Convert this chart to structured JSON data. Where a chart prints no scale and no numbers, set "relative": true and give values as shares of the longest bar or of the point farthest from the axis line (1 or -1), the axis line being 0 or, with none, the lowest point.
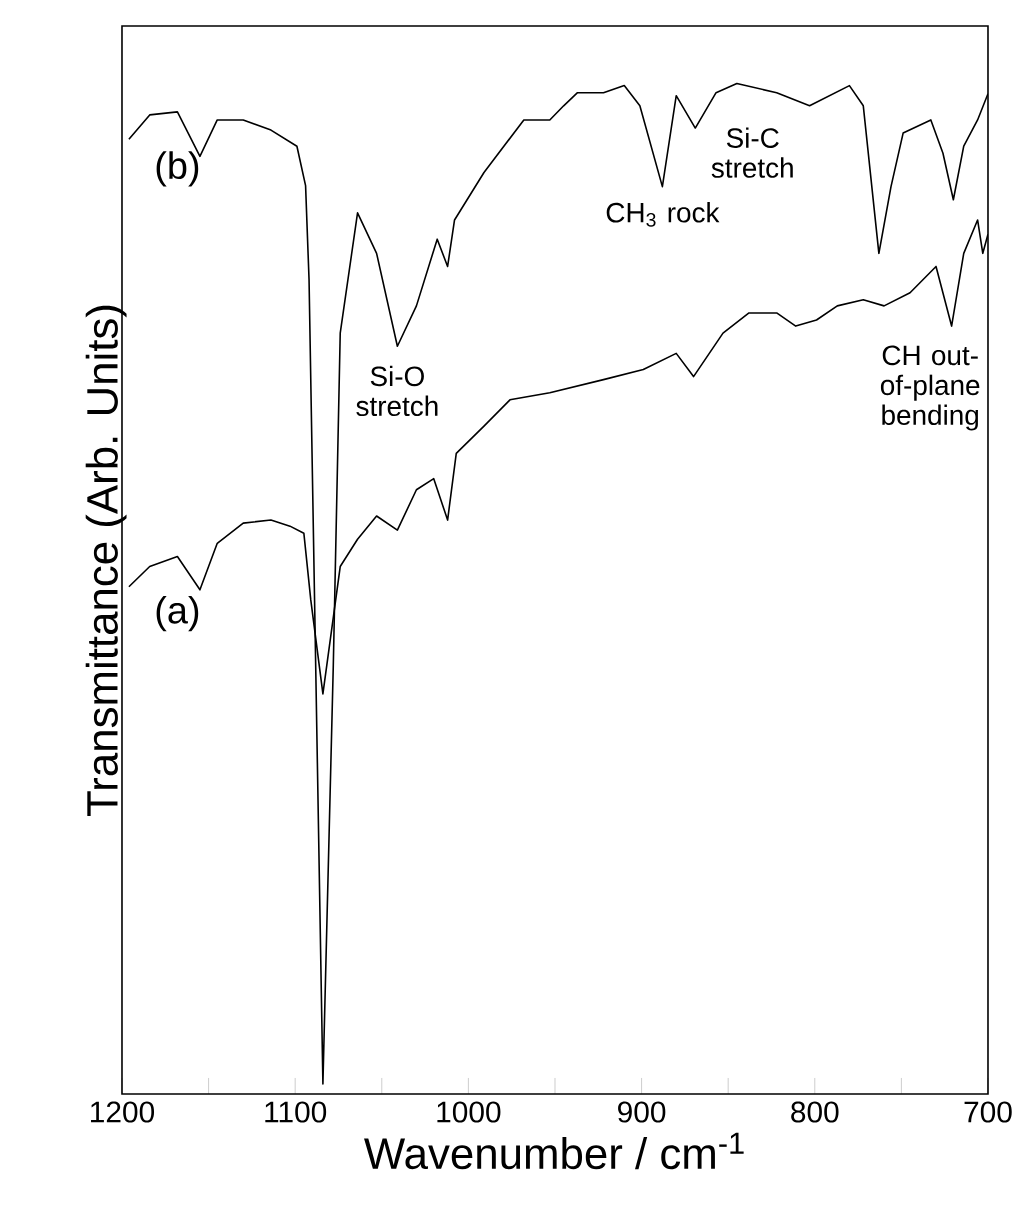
{
  "chart_data": {
    "type": "line",
    "relative": true,
    "xlabel": "Wavenumber / cm$^{-1}$",
    "ylabel": "Transmittance (Arb. Units)",
    "xlim": [
      1200,
      700
    ],
    "xticks": [
      1200,
      {
        "value": 1150,
        "label": null
      },
      1100,
      {
        "value": 1050,
        "label": null
      },
      1000,
      {
        "value": 950,
        "label": null
      },
      900,
      {
        "value": 850,
        "label": null
      },
      800,
      {
        "value": 750,
        "label": null
      },
      700
    ],
    "series": [
      {
        "name": "(b)",
        "color": "#000000",
        "x": [
          1196,
          1184,
          1168,
          1155,
          1145,
          1130,
          1114,
          1099,
          1094,
          1092,
          1084,
          1078,
          1074,
          1064,
          1053,
          1041,
          1030,
          1018,
          1012,
          1008,
          991,
          968,
          953,
          945,
          937,
          922,
          910,
          901,
          888,
          880,
          869,
          857,
          845,
          822,
          803,
          780,
          772,
          763,
          756,
          749,
          733,
          726,
          720,
          714,
          706,
          700
        ],
        "values": [
          0.945,
          0.969,
          0.972,
          0.928,
          0.964,
          0.964,
          0.954,
          0.938,
          0.899,
          0.806,
          0.01,
          0.424,
          0.753,
          0.872,
          0.832,
          0.74,
          0.78,
          0.846,
          0.819,
          0.865,
          0.912,
          0.964,
          0.964,
          0.978,
          0.991,
          0.991,
          0.998,
          0.978,
          0.898,
          0.988,
          0.956,
          0.991,
          1.0,
          0.991,
          0.978,
          0.998,
          0.978,
          0.832,
          0.898,
          0.951,
          0.964,
          0.931,
          0.885,
          0.938,
          0.964,
          0.99
        ]
      },
      {
        "name": "(a)",
        "color": "#000000",
        "x": [
          1196,
          1184,
          1168,
          1155,
          1145,
          1130,
          1114,
          1103,
          1095,
          1091,
          1084,
          1074,
          1064,
          1053,
          1041,
          1030,
          1020,
          1012,
          1007,
          991,
          976,
          953,
          922,
          899,
          880,
          870,
          853,
          838,
          822,
          811,
          799,
          787,
          772,
          760,
          745,
          730,
          721,
          714,
          706,
          703,
          700
        ],
        "values": [
          0.502,
          0.522,
          0.532,
          0.499,
          0.545,
          0.565,
          0.568,
          0.562,
          0.555,
          0.489,
          0.396,
          0.522,
          0.549,
          0.572,
          0.558,
          0.598,
          0.609,
          0.568,
          0.634,
          0.661,
          0.687,
          0.694,
          0.707,
          0.717,
          0.733,
          0.71,
          0.753,
          0.773,
          0.773,
          0.76,
          0.766,
          0.78,
          0.786,
          0.78,
          0.793,
          0.819,
          0.76,
          0.832,
          0.865,
          0.832,
          0.851
        ]
      }
    ],
    "annotations": [
      {
        "text": "Si-O stretch",
        "x": 1041,
        "y": 0.74
      },
      {
        "text": "CH$_{3}$ rock",
        "x": 888,
        "y": 0.898
      },
      {
        "text": "Si-C stretch",
        "x": 869,
        "y": 0.956
      },
      {
        "text": "CH out-of-plane bending",
        "x": 721,
        "y": 0.76
      }
    ]
  }
}
